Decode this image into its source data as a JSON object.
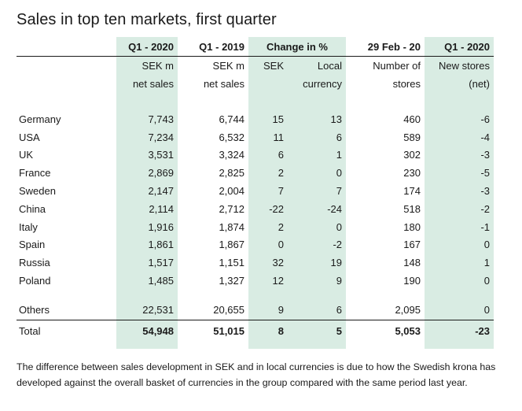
{
  "title": "Sales in top ten markets, first quarter",
  "header": {
    "q1_2020": "Q1 - 2020",
    "q1_2019": "Q1 - 2019",
    "change": "Change in %",
    "feb": "29 Feb - 20",
    "q1_2020b": "Q1 - 2020"
  },
  "sub1": [
    "SEK m",
    "SEK m",
    "SEK",
    "Local",
    "Number of",
    "New stores"
  ],
  "sub2": [
    "net sales",
    "net sales",
    "",
    "currency",
    "stores",
    "(net)"
  ],
  "rows": [
    {
      "market": "Germany",
      "s2020": "7,743",
      "s2019": "6,744",
      "sek": "15",
      "local": "13",
      "stores": "460",
      "new": "-6"
    },
    {
      "market": "USA",
      "s2020": "7,234",
      "s2019": "6,532",
      "sek": "11",
      "local": "6",
      "stores": "589",
      "new": "-4"
    },
    {
      "market": "UK",
      "s2020": "3,531",
      "s2019": "3,324",
      "sek": "6",
      "local": "1",
      "stores": "302",
      "new": "-3"
    },
    {
      "market": "France",
      "s2020": "2,869",
      "s2019": "2,825",
      "sek": "2",
      "local": "0",
      "stores": "230",
      "new": "-5"
    },
    {
      "market": "Sweden",
      "s2020": "2,147",
      "s2019": "2,004",
      "sek": "7",
      "local": "7",
      "stores": "174",
      "new": "-3"
    },
    {
      "market": "China",
      "s2020": "2,114",
      "s2019": "2,712",
      "sek": "-22",
      "local": "-24",
      "stores": "518",
      "new": "-2"
    },
    {
      "market": "Italy",
      "s2020": "1,916",
      "s2019": "1,874",
      "sek": "2",
      "local": "0",
      "stores": "180",
      "new": "-1"
    },
    {
      "market": "Spain",
      "s2020": "1,861",
      "s2019": "1,867",
      "sek": "0",
      "local": "-2",
      "stores": "167",
      "new": "0"
    },
    {
      "market": "Russia",
      "s2020": "1,517",
      "s2019": "1,151",
      "sek": "32",
      "local": "19",
      "stores": "148",
      "new": "1"
    },
    {
      "market": "Poland",
      "s2020": "1,485",
      "s2019": "1,327",
      "sek": "12",
      "local": "9",
      "stores": "190",
      "new": "0"
    }
  ],
  "others": {
    "market": "Others",
    "s2020": "22,531",
    "s2019": "20,655",
    "sek": "9",
    "local": "6",
    "stores": "2,095",
    "new": "0"
  },
  "total": {
    "market": "Total",
    "s2020": "54,948",
    "s2019": "51,015",
    "sek": "8",
    "local": "5",
    "stores": "5,053",
    "new": "-23"
  },
  "note": "The difference between sales development in SEK and in local currencies is due to how the Swedish krona has developed against the overall basket of currencies in the group compared with the same period last year.",
  "colors": {
    "band": "#d9ece3",
    "text": "#1a1a1a"
  }
}
